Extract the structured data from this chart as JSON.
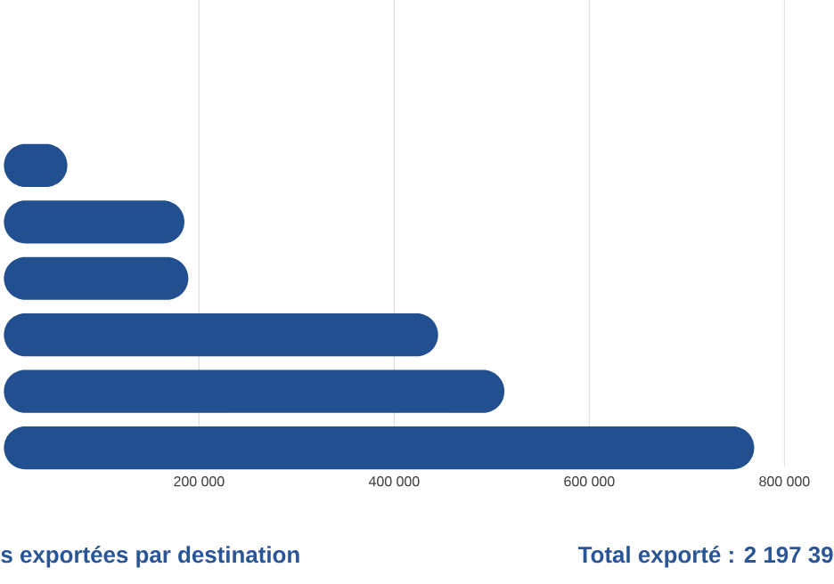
{
  "chart_data": {
    "type": "bar",
    "orientation": "horizontal",
    "title": "s exportées par destination",
    "annotations": [
      "Total exporté  : 2 197 39"
    ],
    "categories": [
      null,
      null,
      null,
      null,
      null,
      null
    ],
    "values": [
      65000,
      185000,
      189000,
      445000,
      513000,
      769000
    ],
    "color": "#214f8f",
    "xlim": [
      0,
      800000
    ],
    "xticks": [
      {
        "value": 200000,
        "label": "200 000"
      },
      {
        "value": 400000,
        "label": "400 000"
      },
      {
        "value": 600000,
        "label": "600 000"
      },
      {
        "value": 800000,
        "label": "800 000"
      }
    ],
    "grid": "x"
  }
}
